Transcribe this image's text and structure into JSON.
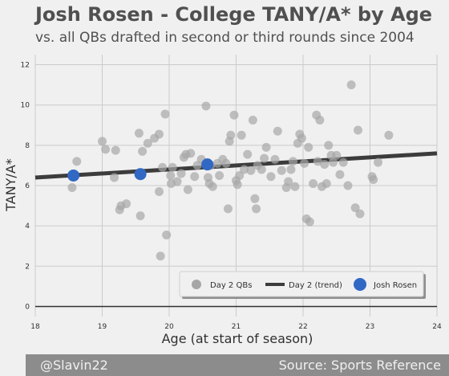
{
  "chart_data": {
    "type": "scatter",
    "title": "Josh Rosen - College TANY/A* by Age",
    "subtitle": "vs. all QBs drafted in second or third rounds since 2004",
    "xlabel": "Age (at start of season)",
    "ylabel": "TANY/A*",
    "xlim": [
      18,
      24
    ],
    "ylim": [
      -0.5,
      12.5
    ],
    "xticks": [
      "18",
      "19",
      "20",
      "21",
      "22",
      "23",
      "24"
    ],
    "yticks": [
      "0",
      "2",
      "4",
      "6",
      "8",
      "10",
      "12"
    ],
    "grid": true,
    "legend_placement": "bottom-right",
    "legend": [
      "Day 2 QBs",
      "Day 2 (trend)",
      "Josh Rosen"
    ],
    "colors": {
      "day2": "#a6a6a6",
      "trend": "#3c3c3c",
      "rosen": "#3068c4"
    },
    "series": [
      {
        "name": "Day 2 QBs",
        "points": [
          [
            18.55,
            5.9
          ],
          [
            18.62,
            7.2
          ],
          [
            19.0,
            8.2
          ],
          [
            19.05,
            7.8
          ],
          [
            19.18,
            6.4
          ],
          [
            19.2,
            7.75
          ],
          [
            19.26,
            4.8
          ],
          [
            19.28,
            5.0
          ],
          [
            19.36,
            5.1
          ],
          [
            19.55,
            8.6
          ],
          [
            19.57,
            4.5
          ],
          [
            19.6,
            7.7
          ],
          [
            19.68,
            8.1
          ],
          [
            19.78,
            8.35
          ],
          [
            19.85,
            8.55
          ],
          [
            19.85,
            5.7
          ],
          [
            19.87,
            2.5
          ],
          [
            19.9,
            6.9
          ],
          [
            19.94,
            9.55
          ],
          [
            19.96,
            3.55
          ],
          [
            20.02,
            6.5
          ],
          [
            20.03,
            6.1
          ],
          [
            20.05,
            6.9
          ],
          [
            20.12,
            6.2
          ],
          [
            20.18,
            6.6
          ],
          [
            20.22,
            7.4
          ],
          [
            20.25,
            7.55
          ],
          [
            20.28,
            5.8
          ],
          [
            20.32,
            7.6
          ],
          [
            20.38,
            6.45
          ],
          [
            20.42,
            7.0
          ],
          [
            20.48,
            7.3
          ],
          [
            20.55,
            9.95
          ],
          [
            20.58,
            6.4
          ],
          [
            20.6,
            6.1
          ],
          [
            20.62,
            7.0
          ],
          [
            20.65,
            5.95
          ],
          [
            20.72,
            7.1
          ],
          [
            20.75,
            6.5
          ],
          [
            20.8,
            7.3
          ],
          [
            20.85,
            7.1
          ],
          [
            20.88,
            4.85
          ],
          [
            20.9,
            8.2
          ],
          [
            20.92,
            8.5
          ],
          [
            20.97,
            9.5
          ],
          [
            21.0,
            6.25
          ],
          [
            21.02,
            6.05
          ],
          [
            21.05,
            6.5
          ],
          [
            21.08,
            8.5
          ],
          [
            21.12,
            6.8
          ],
          [
            21.17,
            7.55
          ],
          [
            21.22,
            6.75
          ],
          [
            21.25,
            9.25
          ],
          [
            21.28,
            5.35
          ],
          [
            21.3,
            4.85
          ],
          [
            21.32,
            7.0
          ],
          [
            21.38,
            6.8
          ],
          [
            21.42,
            7.35
          ],
          [
            21.45,
            7.9
          ],
          [
            21.52,
            6.45
          ],
          [
            21.58,
            7.3
          ],
          [
            21.62,
            8.7
          ],
          [
            21.68,
            6.75
          ],
          [
            21.75,
            5.9
          ],
          [
            21.78,
            6.2
          ],
          [
            21.82,
            6.8
          ],
          [
            21.85,
            7.2
          ],
          [
            21.88,
            5.95
          ],
          [
            21.92,
            8.1
          ],
          [
            21.95,
            8.55
          ],
          [
            21.98,
            8.35
          ],
          [
            22.02,
            7.1
          ],
          [
            22.05,
            4.35
          ],
          [
            22.08,
            7.9
          ],
          [
            22.1,
            4.2
          ],
          [
            22.15,
            6.1
          ],
          [
            22.2,
            9.5
          ],
          [
            22.22,
            7.2
          ],
          [
            22.25,
            9.25
          ],
          [
            22.28,
            5.95
          ],
          [
            22.32,
            7.05
          ],
          [
            22.35,
            6.1
          ],
          [
            22.38,
            8.0
          ],
          [
            22.42,
            7.5
          ],
          [
            22.45,
            7.15
          ],
          [
            22.5,
            7.5
          ],
          [
            22.55,
            6.55
          ],
          [
            22.6,
            7.15
          ],
          [
            22.67,
            6.0
          ],
          [
            22.72,
            11.0
          ],
          [
            22.78,
            4.9
          ],
          [
            22.82,
            8.75
          ],
          [
            22.85,
            4.6
          ],
          [
            23.03,
            6.45
          ],
          [
            23.05,
            6.3
          ],
          [
            23.12,
            7.15
          ],
          [
            23.28,
            8.5
          ]
        ]
      },
      {
        "name": "Day 2 (trend)",
        "line": [
          [
            18.0,
            6.4
          ],
          [
            24.0,
            7.6
          ]
        ]
      },
      {
        "name": "Josh Rosen",
        "points": [
          [
            18.57,
            6.5
          ],
          [
            19.57,
            6.57
          ],
          [
            20.57,
            7.05
          ]
        ]
      }
    ]
  },
  "footer": {
    "credit": "@Slavin22",
    "source": "Source: Sports Reference"
  }
}
